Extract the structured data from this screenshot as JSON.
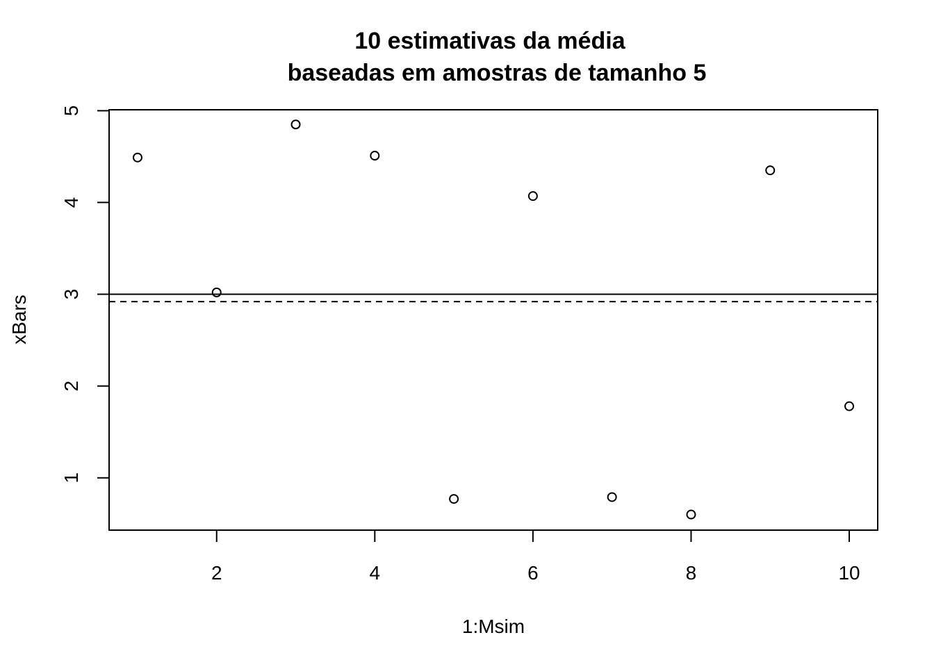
{
  "chart_data": {
    "type": "scatter",
    "title": "10 estimativas da média",
    "subtitle": "baseadas em amostras de tamanho 5",
    "xlabel": "1:Msim",
    "ylabel": "xBars",
    "x": [
      1,
      2,
      3,
      4,
      5,
      6,
      7,
      8,
      9,
      10
    ],
    "y": [
      4.49,
      3.02,
      4.85,
      4.51,
      0.77,
      4.07,
      0.79,
      0.6,
      4.35,
      1.78
    ],
    "xlim": [
      0.64,
      10.36
    ],
    "ylim": [
      0.43,
      5.01
    ],
    "x_ticks": [
      2,
      4,
      6,
      8,
      10
    ],
    "y_ticks": [
      1,
      2,
      3,
      4,
      5
    ],
    "reference_lines": [
      {
        "y": 3.0,
        "style": "solid"
      },
      {
        "y": 2.92,
        "style": "dashed"
      }
    ],
    "marker": "open-circle",
    "grid": false,
    "colors": {
      "points": "#000000",
      "lines": "#000000",
      "background": "#ffffff"
    }
  }
}
